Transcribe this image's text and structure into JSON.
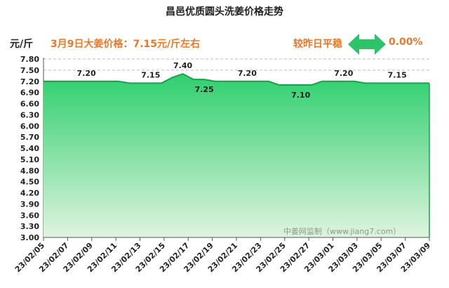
{
  "title": "昌邑优质圆头洗姜价格走势",
  "ylabel": "元/斤",
  "headline": "3月9日大姜价格：7.15元/斤左右",
  "compare_label": "较昨日平稳",
  "change_value": "0.00%",
  "watermark": "中姜网监制（www.jiang7.com）",
  "colors": {
    "area_top": "#2fcf6e",
    "area_bottom": "#d9f2d9",
    "line": "#1aa04a",
    "accent": "#e8782a",
    "arrow": "#2ec36a"
  },
  "chart_data": {
    "type": "area",
    "title": "昌邑优质圆头洗姜价格走势",
    "ylabel": "元/斤",
    "ylim": [
      3.0,
      7.8
    ],
    "yticks": [
      "3.00",
      "3.30",
      "3.60",
      "3.90",
      "4.20",
      "4.50",
      "4.80",
      "5.10",
      "5.40",
      "5.70",
      "6.00",
      "6.30",
      "6.60",
      "6.90",
      "7.20",
      "7.50",
      "7.80"
    ],
    "xticks": [
      "23/02/05",
      "23/02/07",
      "23/02/09",
      "23/02/11",
      "23/02/13",
      "23/02/15",
      "23/02/17",
      "23/02/19",
      "23/02/21",
      "23/02/23",
      "23/02/25",
      "23/02/27",
      "23/03/01",
      "23/03/03",
      "23/03/05",
      "23/03/07",
      "23/03/09"
    ],
    "series": [
      {
        "values": [
          7.2,
          7.2,
          7.2,
          7.2,
          7.2,
          7.2,
          7.2,
          7.2,
          7.15,
          7.15,
          7.15,
          7.15,
          7.3,
          7.4,
          7.25,
          7.25,
          7.2,
          7.2,
          7.2,
          7.2,
          7.2,
          7.2,
          7.1,
          7.1,
          7.1,
          7.1,
          7.2,
          7.2,
          7.2,
          7.2,
          7.15,
          7.15,
          7.15,
          7.15,
          7.15,
          7.15,
          7.15
        ]
      }
    ],
    "data_labels": [
      {
        "index": 4,
        "text": "7.20"
      },
      {
        "index": 10,
        "text": "7.15"
      },
      {
        "index": 13,
        "text": "7.40"
      },
      {
        "index": 15,
        "text": "7.25"
      },
      {
        "index": 19,
        "text": "7.20"
      },
      {
        "index": 24,
        "text": "7.10"
      },
      {
        "index": 28,
        "text": "7.20"
      },
      {
        "index": 33,
        "text": "7.15"
      }
    ],
    "grid": {
      "horizontal_dashed_above": 7.5
    }
  }
}
